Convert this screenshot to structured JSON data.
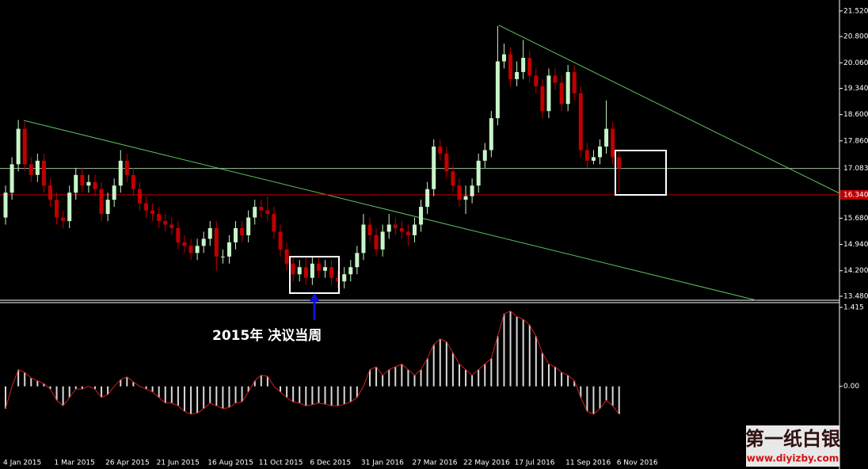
{
  "chart_data": [
    {
      "type": "candlestick",
      "categories": [
        "4 Jan 2015",
        null,
        null,
        null,
        null,
        null,
        null,
        null,
        "1 Mar 2015",
        null,
        null,
        null,
        null,
        null,
        null,
        null,
        "26 Apr 2015",
        null,
        null,
        null,
        null,
        null,
        null,
        null,
        "21 Jun 2015",
        null,
        null,
        null,
        null,
        null,
        null,
        null,
        "16 Aug 2015",
        null,
        null,
        null,
        null,
        null,
        null,
        null,
        "11 Oct 2015",
        null,
        null,
        null,
        null,
        null,
        null,
        null,
        "6 Dec 2015",
        null,
        null,
        null,
        null,
        null,
        null,
        null,
        "31 Jan 2016",
        null,
        null,
        null,
        null,
        null,
        null,
        null,
        "27 Mar 2016",
        null,
        null,
        null,
        null,
        null,
        null,
        null,
        "22 May 2016",
        null,
        null,
        null,
        null,
        null,
        null,
        null,
        "17 Jul 2016",
        null,
        null,
        null,
        null,
        null,
        null,
        null,
        "11 Sep 2016",
        null,
        null,
        null,
        null,
        null,
        null,
        null,
        "6 Nov 2016"
      ],
      "open": [
        15.7,
        16.4,
        17.2,
        18.2,
        17.2,
        16.9,
        17.3,
        16.6,
        16.2,
        15.7,
        15.6,
        16.4,
        16.9,
        16.6,
        16.7,
        16.5,
        15.8,
        16.2,
        16.6,
        17.3,
        16.9,
        16.5,
        16.1,
        15.9,
        15.8,
        15.6,
        15.5,
        15.4,
        15.0,
        14.9,
        14.7,
        14.9,
        15.1,
        15.4,
        14.6,
        14.6,
        15.0,
        15.4,
        15.2,
        15.7,
        16.0,
        15.9,
        15.8,
        15.3,
        14.8,
        14.4,
        14.1,
        14.3,
        14.0,
        14.4,
        14.2,
        14.3,
        14.0,
        13.9,
        14.1,
        14.3,
        14.7,
        15.5,
        15.2,
        14.8,
        15.3,
        15.5,
        15.4,
        15.3,
        15.2,
        15.5,
        16.0,
        16.5,
        17.7,
        17.5,
        17.0,
        16.6,
        16.2,
        16.3,
        16.6,
        17.3,
        17.6,
        18.5,
        20.1,
        20.3,
        19.6,
        19.8,
        20.2,
        19.7,
        19.4,
        18.7,
        19.7,
        19.5,
        18.9,
        19.8,
        19.2,
        17.6,
        17.3,
        17.4,
        17.7,
        18.2,
        17.4
      ],
      "high": [
        16.6,
        17.4,
        18.45,
        18.4,
        17.4,
        17.5,
        17.5,
        16.8,
        16.4,
        15.9,
        16.6,
        17.1,
        17.1,
        16.9,
        16.9,
        16.7,
        16.4,
        16.8,
        17.6,
        17.5,
        17.1,
        16.7,
        16.3,
        16.1,
        16.0,
        15.8,
        15.7,
        15.6,
        15.2,
        15.1,
        15.1,
        15.3,
        15.6,
        15.6,
        14.8,
        15.2,
        15.6,
        15.6,
        15.9,
        16.2,
        16.2,
        16.3,
        16.0,
        15.5,
        15.0,
        14.6,
        14.5,
        14.6,
        14.6,
        14.6,
        14.5,
        14.5,
        14.2,
        14.3,
        14.5,
        14.9,
        15.8,
        15.7,
        15.4,
        15.5,
        15.8,
        15.7,
        15.6,
        15.5,
        15.7,
        16.2,
        16.7,
        17.9,
        17.9,
        17.7,
        17.2,
        16.8,
        16.6,
        16.8,
        17.5,
        17.8,
        18.7,
        21.1,
        20.6,
        20.5,
        20.1,
        20.7,
        20.4,
        19.9,
        19.6,
        19.9,
        19.9,
        19.7,
        20.0,
        20.0,
        19.4,
        17.8,
        17.6,
        17.9,
        19.0,
        18.4,
        17.6
      ],
      "low": [
        15.5,
        16.2,
        17.0,
        17.0,
        16.7,
        16.7,
        16.4,
        16.0,
        15.5,
        15.4,
        15.4,
        16.2,
        16.4,
        16.4,
        16.3,
        15.6,
        15.6,
        16.0,
        16.4,
        16.7,
        16.3,
        15.9,
        15.7,
        15.6,
        15.4,
        15.3,
        15.2,
        14.8,
        14.7,
        14.5,
        14.5,
        14.7,
        14.9,
        14.2,
        14.4,
        14.4,
        14.8,
        15.0,
        15.0,
        15.5,
        15.7,
        15.6,
        15.1,
        14.6,
        14.2,
        13.9,
        13.9,
        13.8,
        13.8,
        14.0,
        14.0,
        13.8,
        13.7,
        13.7,
        13.9,
        14.1,
        14.5,
        15.0,
        14.6,
        14.6,
        15.1,
        15.2,
        15.1,
        14.9,
        15.0,
        15.3,
        15.8,
        16.3,
        17.3,
        16.8,
        16.4,
        16.0,
        15.8,
        16.1,
        16.4,
        17.1,
        17.4,
        18.3,
        19.9,
        19.4,
        19.4,
        19.6,
        19.5,
        19.2,
        18.5,
        18.5,
        19.3,
        18.7,
        18.7,
        19.0,
        17.4,
        17.1,
        17.2,
        17.2,
        17.5,
        17.2,
        16.4
      ],
      "close": [
        16.4,
        17.2,
        18.2,
        17.2,
        16.9,
        17.3,
        16.6,
        16.2,
        15.7,
        15.6,
        16.4,
        16.9,
        16.6,
        16.7,
        16.5,
        15.8,
        16.2,
        16.6,
        17.3,
        16.9,
        16.5,
        16.1,
        15.9,
        15.8,
        15.6,
        15.5,
        15.4,
        15.0,
        14.9,
        14.7,
        14.9,
        15.1,
        15.4,
        14.6,
        14.6,
        15.0,
        15.4,
        15.2,
        15.7,
        16.0,
        15.9,
        15.8,
        15.3,
        14.8,
        14.4,
        14.1,
        14.3,
        14.0,
        14.4,
        14.2,
        14.3,
        14.0,
        13.9,
        14.1,
        14.3,
        14.7,
        15.5,
        15.2,
        14.8,
        15.3,
        15.5,
        15.4,
        15.3,
        15.2,
        15.5,
        16.0,
        16.5,
        17.7,
        17.5,
        17.0,
        16.6,
        16.2,
        16.3,
        16.6,
        17.3,
        17.6,
        18.5,
        20.1,
        20.3,
        19.6,
        19.8,
        20.2,
        19.7,
        19.4,
        18.7,
        19.7,
        19.5,
        18.9,
        19.8,
        19.2,
        17.6,
        17.3,
        17.4,
        17.7,
        18.2,
        17.4,
        17.08
      ],
      "up_color": "#c8f5c8",
      "down_color": "#c00000",
      "ylim": [
        13.39,
        21.83
      ],
      "yticks": [
        {
          "value": 21.52,
          "label": "21.520"
        },
        {
          "value": 20.8,
          "label": "20.800"
        },
        {
          "value": 20.06,
          "label": "20.060"
        },
        {
          "value": 19.34,
          "label": "19.340"
        },
        {
          "value": 18.6,
          "label": "18.600"
        },
        {
          "value": 17.86,
          "label": "17.860"
        },
        {
          "value": 15.68,
          "label": "15.680"
        },
        {
          "value": 14.94,
          "label": "14.940"
        },
        {
          "value": 14.2,
          "label": "14.200"
        },
        {
          "value": 13.48,
          "label": "13.480"
        }
      ],
      "price_lines": [
        {
          "value": 17.083,
          "color": "#9fbf9f"
        },
        {
          "value": 16.34,
          "label": "16.340",
          "color": "#c00000"
        }
      ],
      "annotation": "2015年 决议当周"
    },
    {
      "type": "histogram",
      "values": [
        -0.4,
        0.0,
        0.3,
        0.25,
        0.15,
        0.1,
        0.05,
        -0.05,
        -0.25,
        -0.35,
        -0.2,
        -0.05,
        -0.05,
        0.0,
        -0.05,
        -0.2,
        -0.15,
        0.0,
        0.12,
        0.17,
        0.08,
        0.0,
        -0.05,
        -0.1,
        -0.2,
        -0.3,
        -0.3,
        -0.35,
        -0.45,
        -0.5,
        -0.48,
        -0.4,
        -0.3,
        -0.35,
        -0.4,
        -0.38,
        -0.3,
        -0.28,
        -0.1,
        0.1,
        0.2,
        0.18,
        0.0,
        -0.1,
        -0.2,
        -0.28,
        -0.3,
        -0.35,
        -0.33,
        -0.3,
        -0.32,
        -0.35,
        -0.35,
        -0.32,
        -0.28,
        -0.2,
        0.0,
        0.3,
        0.35,
        0.2,
        0.3,
        0.35,
        0.4,
        0.3,
        0.2,
        0.3,
        0.5,
        0.75,
        0.85,
        0.8,
        0.6,
        0.4,
        0.3,
        0.2,
        0.3,
        0.4,
        0.5,
        0.9,
        1.3,
        1.35,
        1.25,
        1.2,
        1.1,
        0.9,
        0.6,
        0.4,
        0.35,
        0.25,
        0.2,
        0.1,
        -0.2,
        -0.45,
        -0.5,
        -0.4,
        -0.25,
        -0.35,
        -0.5
      ],
      "color": "#d8d8d8",
      "line_color": "#d02020",
      "ylim": [
        -1.24,
        1.5
      ],
      "yticks": [
        1.415,
        {
          "value": 0,
          "label": "0.00"
        }
      ]
    },
    {
      "type": "watermark",
      "title": "第一纸白银",
      "url": "www.diyizby.com"
    }
  ]
}
